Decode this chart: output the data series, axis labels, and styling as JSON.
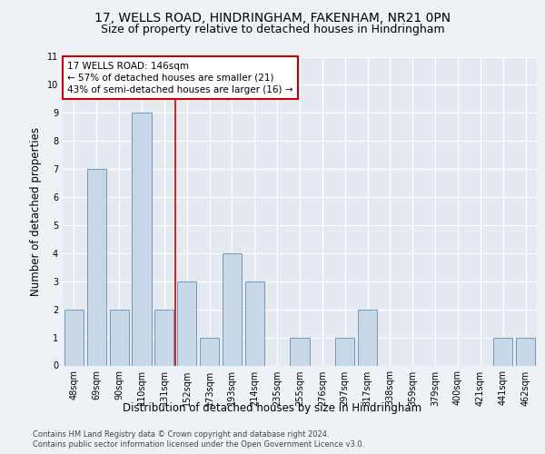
{
  "title1": "17, WELLS ROAD, HINDRINGHAM, FAKENHAM, NR21 0PN",
  "title2": "Size of property relative to detached houses in Hindringham",
  "xlabel": "Distribution of detached houses by size in Hindringham",
  "ylabel": "Number of detached properties",
  "categories": [
    "48sqm",
    "69sqm",
    "90sqm",
    "110sqm",
    "131sqm",
    "152sqm",
    "173sqm",
    "193sqm",
    "214sqm",
    "235sqm",
    "255sqm",
    "276sqm",
    "297sqm",
    "317sqm",
    "338sqm",
    "359sqm",
    "379sqm",
    "400sqm",
    "421sqm",
    "441sqm",
    "462sqm"
  ],
  "values": [
    2,
    7,
    2,
    9,
    2,
    3,
    1,
    4,
    3,
    0,
    1,
    0,
    1,
    2,
    0,
    0,
    0,
    0,
    0,
    1,
    1
  ],
  "bar_color": "#c8d8e8",
  "bar_edge_color": "#6090b0",
  "reference_line_index": 4,
  "reference_line_color": "#cc0000",
  "annotation_text": "17 WELLS ROAD: 146sqm\n← 57% of detached houses are smaller (21)\n43% of semi-detached houses are larger (16) →",
  "annotation_box_color": "#ffffff",
  "annotation_box_edge_color": "#cc0000",
  "ylim": [
    0,
    11
  ],
  "yticks": [
    0,
    1,
    2,
    3,
    4,
    5,
    6,
    7,
    8,
    9,
    10,
    11
  ],
  "footer1": "Contains HM Land Registry data © Crown copyright and database right 2024.",
  "footer2": "Contains public sector information licensed under the Open Government Licence v3.0.",
  "bg_color": "#eef2f6",
  "plot_bg_color": "#e4eaf0",
  "grid_color": "#ffffff",
  "title1_fontsize": 10,
  "title2_fontsize": 9,
  "tick_fontsize": 7,
  "ylabel_fontsize": 8.5,
  "xlabel_fontsize": 8.5,
  "footer_fontsize": 6,
  "annotation_fontsize": 7.5
}
